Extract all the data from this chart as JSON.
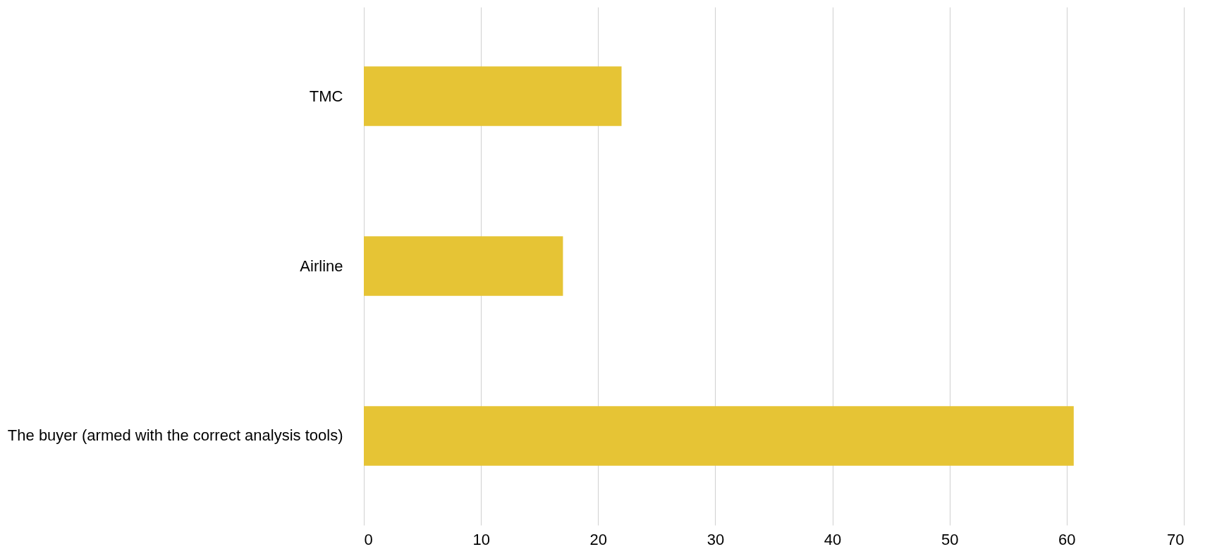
{
  "chart_data": {
    "type": "bar",
    "orientation": "horizontal",
    "categories": [
      "TMC",
      "Airline",
      "The buyer (armed with the correct analysis tools)"
    ],
    "values": [
      22,
      17,
      60.6
    ],
    "color": "#e6c435",
    "xlim": [
      0,
      70
    ],
    "xticks": [
      0,
      10,
      20,
      30,
      40,
      50,
      60,
      70
    ],
    "grid": "x"
  }
}
